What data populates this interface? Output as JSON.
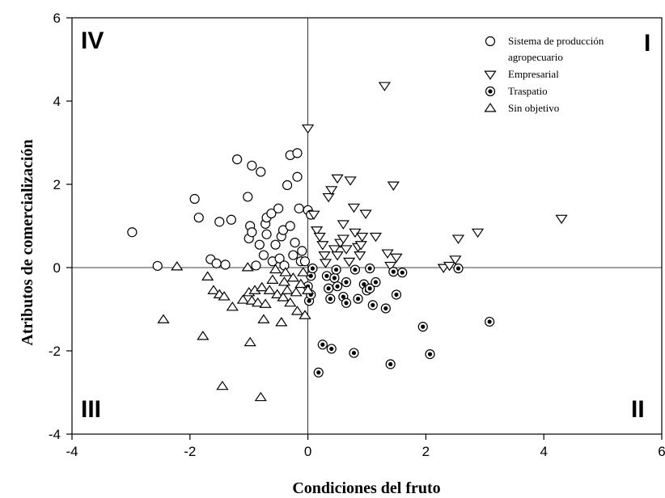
{
  "chart_data": {
    "type": "scatter",
    "xlabel": "Condiciones del fruto",
    "ylabel": "Atributos de comercialización",
    "xlim": [
      -4,
      6
    ],
    "ylim": [
      -4,
      6
    ],
    "xticks": [
      "-4",
      "-2",
      "0",
      "2",
      "4",
      "6"
    ],
    "yticks": [
      "-4",
      "-2",
      "0",
      "2",
      "4",
      "6"
    ],
    "grid": false,
    "reference_lines": {
      "x": 0,
      "y": 0
    },
    "legend_position": "top-right",
    "quadrants": {
      "I": "I",
      "II": "II",
      "III": "III",
      "IV": "IV"
    },
    "series": [
      {
        "name": "Sistema de producción agropecuario",
        "marker": "circle",
        "legend_lines": [
          "Sistema de producción",
          "agropecuario"
        ],
        "points": [
          [
            -2.98,
            0.85
          ],
          [
            -2.55,
            0.04
          ],
          [
            -1.92,
            1.65
          ],
          [
            -1.85,
            1.2
          ],
          [
            -1.65,
            0.2
          ],
          [
            -1.55,
            0.1
          ],
          [
            -1.5,
            1.1
          ],
          [
            -1.4,
            0.07
          ],
          [
            -1.3,
            1.15
          ],
          [
            -1.2,
            2.6
          ],
          [
            -1.02,
            1.7
          ],
          [
            -1.0,
            0.7
          ],
          [
            -0.98,
            1.0
          ],
          [
            -0.95,
            0.85
          ],
          [
            -0.95,
            2.45
          ],
          [
            -0.88,
            0.05
          ],
          [
            -0.82,
            0.55
          ],
          [
            -0.8,
            2.3
          ],
          [
            -0.75,
            0.3
          ],
          [
            -0.72,
            1.05
          ],
          [
            -0.7,
            0.8
          ],
          [
            -0.7,
            1.2
          ],
          [
            -0.62,
            1.3
          ],
          [
            -0.6,
            0.15
          ],
          [
            -0.55,
            0.55
          ],
          [
            -0.5,
            1.42
          ],
          [
            -0.48,
            0.22
          ],
          [
            -0.45,
            0.75
          ],
          [
            -0.42,
            0.9
          ],
          [
            -0.4,
            0.05
          ],
          [
            -0.35,
            1.98
          ],
          [
            -0.3,
            2.7
          ],
          [
            -0.3,
            1.0
          ],
          [
            -0.25,
            0.3
          ],
          [
            -0.22,
            0.6
          ],
          [
            -0.18,
            2.75
          ],
          [
            -0.18,
            2.18
          ],
          [
            -0.15,
            1.42
          ],
          [
            -0.12,
            0.15
          ],
          [
            -0.1,
            0.4
          ],
          [
            -0.05,
            0.15
          ],
          [
            0.0,
            1.38
          ],
          [
            0.05,
            1.27
          ]
        ]
      },
      {
        "name": "Empresarial",
        "marker": "triangle-down",
        "legend_lines": [
          "Empresarial"
        ],
        "points": [
          [
            0.0,
            3.35
          ],
          [
            0.1,
            1.28
          ],
          [
            0.15,
            0.9
          ],
          [
            0.2,
            0.75
          ],
          [
            0.25,
            0.55
          ],
          [
            0.28,
            0.3
          ],
          [
            0.3,
            0.12
          ],
          [
            0.35,
            1.7
          ],
          [
            0.4,
            1.87
          ],
          [
            0.45,
            0.45
          ],
          [
            0.5,
            2.15
          ],
          [
            0.5,
            0.3
          ],
          [
            0.55,
            0.6
          ],
          [
            0.6,
            0.7
          ],
          [
            0.6,
            1.05
          ],
          [
            0.65,
            0.45
          ],
          [
            0.7,
            0.15
          ],
          [
            0.72,
            2.1
          ],
          [
            0.78,
            1.45
          ],
          [
            0.8,
            0.85
          ],
          [
            0.85,
            0.5
          ],
          [
            0.88,
            0.3
          ],
          [
            0.9,
            0.55
          ],
          [
            0.92,
            0.75
          ],
          [
            0.98,
            1.3
          ],
          [
            1.15,
            0.75
          ],
          [
            1.3,
            4.37
          ],
          [
            1.35,
            0.35
          ],
          [
            1.4,
            0.05
          ],
          [
            1.45,
            1.98
          ],
          [
            1.5,
            0.25
          ],
          [
            2.3,
            0.0
          ],
          [
            2.4,
            0.05
          ],
          [
            2.5,
            0.2
          ],
          [
            2.55,
            0.7
          ],
          [
            2.88,
            0.85
          ],
          [
            4.3,
            1.18
          ]
        ]
      },
      {
        "name": "Traspatio",
        "marker": "dotted-circle",
        "legend_lines": [
          "Traspatio"
        ],
        "points": [
          [
            0.0,
            -0.45
          ],
          [
            0.02,
            -0.8
          ],
          [
            0.05,
            -0.65
          ],
          [
            0.05,
            -0.2
          ],
          [
            0.08,
            -0.02
          ],
          [
            0.18,
            -2.52
          ],
          [
            0.25,
            -1.85
          ],
          [
            0.32,
            -0.2
          ],
          [
            0.35,
            -0.5
          ],
          [
            0.38,
            -0.75
          ],
          [
            0.4,
            -1.95
          ],
          [
            0.45,
            -0.25
          ],
          [
            0.48,
            -0.05
          ],
          [
            0.5,
            -0.45
          ],
          [
            0.6,
            -0.7
          ],
          [
            0.65,
            -0.35
          ],
          [
            0.65,
            -0.85
          ],
          [
            0.78,
            -2.05
          ],
          [
            0.8,
            -0.05
          ],
          [
            0.85,
            -0.75
          ],
          [
            0.95,
            -0.4
          ],
          [
            1.0,
            -0.55
          ],
          [
            1.05,
            -0.5
          ],
          [
            1.05,
            -0.02
          ],
          [
            1.1,
            -0.9
          ],
          [
            1.15,
            -0.35
          ],
          [
            1.32,
            -0.98
          ],
          [
            1.4,
            -2.32
          ],
          [
            1.45,
            -0.1
          ],
          [
            1.5,
            -0.65
          ],
          [
            1.6,
            -0.12
          ],
          [
            1.95,
            -1.42
          ],
          [
            2.07,
            -2.08
          ],
          [
            2.55,
            -0.02
          ],
          [
            3.08,
            -1.3
          ]
        ]
      },
      {
        "name": "Sin objetivo",
        "marker": "triangle-up",
        "legend_lines": [
          "Sin objetivo"
        ],
        "points": [
          [
            -2.45,
            -1.25
          ],
          [
            -2.22,
            0.02
          ],
          [
            -1.78,
            -1.65
          ],
          [
            -1.7,
            -0.22
          ],
          [
            -1.6,
            -0.55
          ],
          [
            -1.5,
            -0.65
          ],
          [
            -1.45,
            -2.85
          ],
          [
            -1.42,
            -0.7
          ],
          [
            -1.28,
            -0.95
          ],
          [
            -1.1,
            -0.78
          ],
          [
            -1.02,
            -0.0
          ],
          [
            -1.0,
            -0.6
          ],
          [
            -0.98,
            -1.8
          ],
          [
            -0.95,
            -0.8
          ],
          [
            -0.9,
            -0.55
          ],
          [
            -0.85,
            -0.85
          ],
          [
            -0.8,
            -3.12
          ],
          [
            -0.78,
            -0.48
          ],
          [
            -0.75,
            -1.25
          ],
          [
            -0.72,
            -0.88
          ],
          [
            -0.65,
            -0.55
          ],
          [
            -0.6,
            -0.3
          ],
          [
            -0.55,
            -0.05
          ],
          [
            -0.52,
            -0.65
          ],
          [
            -0.45,
            -1.32
          ],
          [
            -0.42,
            -0.72
          ],
          [
            -0.4,
            -0.35
          ],
          [
            -0.38,
            -0.12
          ],
          [
            -0.35,
            -0.55
          ],
          [
            -0.3,
            -0.85
          ],
          [
            -0.25,
            -0.25
          ],
          [
            -0.2,
            -0.6
          ],
          [
            -0.18,
            -1.05
          ],
          [
            -0.12,
            -0.4
          ],
          [
            -0.08,
            -0.12
          ],
          [
            -0.05,
            -1.15
          ],
          [
            0.0,
            -0.55
          ]
        ]
      }
    ]
  }
}
